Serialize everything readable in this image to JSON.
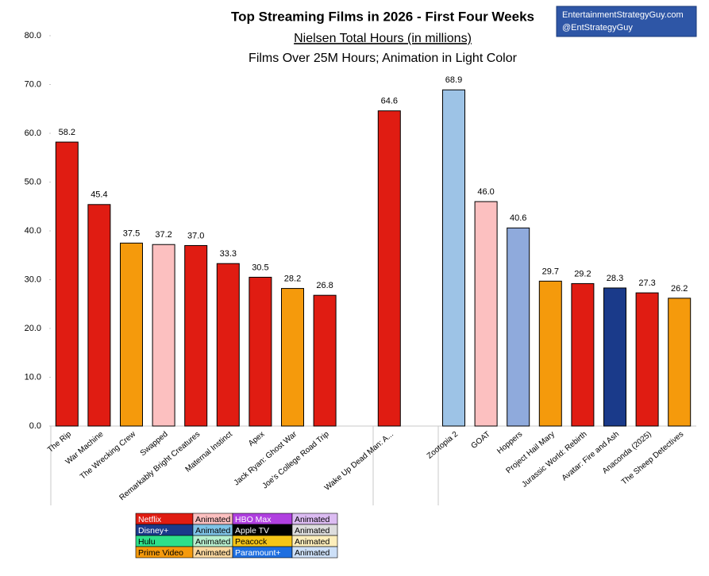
{
  "chart_data": {
    "type": "bar",
    "title": "Top Streaming Films in 2026 - First Four Weeks",
    "subtitle": "Nielsen Total Hours (in millions)",
    "note": "Films Over 25M Hours; Animation in Light Color",
    "credit": [
      "EntertainmentStrategyGuy.com",
      "@EntStrategyGuy"
    ],
    "categories": [
      "The Rip",
      "War Machine",
      "The Wrecking Crew",
      "Swapped",
      "Remarkably Bright Creatures",
      "Maternal Instinct",
      "Apex",
      "Jack Ryan: Ghost War",
      "Joe's College Road Trip",
      null,
      "Wake Up Dead Man: A...",
      null,
      "Zootopia 2",
      "GOAT",
      "Hoppers",
      "Project Hail Mary",
      "Jurassic World: Rebirth",
      "Avatar: Fire and Ash",
      "Anaconda (2025)",
      "The Sheep Detectives"
    ],
    "values": [
      58.2,
      45.4,
      37.5,
      37.2,
      37.0,
      33.3,
      30.5,
      28.2,
      26.8,
      null,
      64.6,
      null,
      68.9,
      46.0,
      40.6,
      29.7,
      29.2,
      28.3,
      27.3,
      26.2
    ],
    "value_labels": [
      "58.2",
      "45.4",
      "37.5",
      "37.2",
      "37.0",
      "33.3",
      "30.5",
      "28.2",
      "26.8",
      null,
      "64.6",
      null,
      "68.9",
      "46.0",
      "40.6",
      "29.7",
      "29.2",
      "28.3",
      "27.3",
      "26.2"
    ],
    "colors": [
      "#e01c12",
      "#e01c12",
      "#f59a0c",
      "#fcc0c0",
      "#e01c12",
      "#e01c12",
      "#e01c12",
      "#f59a0c",
      "#e01c12",
      null,
      "#e01c12",
      null,
      "#9dc3e6",
      "#fcc0c0",
      "#8faadc",
      "#f59a0c",
      "#e01c12",
      "#1a3a8a",
      "#e01c12",
      "#f59a0c"
    ],
    "ylim": [
      0,
      80
    ],
    "yticks": [
      {
        "value": 0,
        "label": "0.0"
      },
      {
        "value": 10,
        "label": "10.0"
      },
      {
        "value": 20,
        "label": "20.0"
      },
      {
        "value": 30,
        "label": "30.0"
      },
      {
        "value": 40,
        "label": "40.0"
      },
      {
        "value": 50,
        "label": "50.0"
      },
      {
        "value": 60,
        "label": "60.0"
      },
      {
        "value": 70,
        "label": "70.0"
      },
      {
        "value": 80,
        "label": "80.0"
      }
    ],
    "legend_table": {
      "rows": [
        [
          {
            "text": "Netflix",
            "bg": "#e01c12",
            "fg": "#ffffff"
          },
          {
            "text": "Animated",
            "bg": "#fcc0c0",
            "fg": "#000000"
          },
          {
            "text": "HBO Max",
            "bg": "#b040e0",
            "fg": "#ffffff"
          },
          {
            "text": "Animated",
            "bg": "#dcbcf2",
            "fg": "#000000"
          }
        ],
        [
          {
            "text": "Disney+",
            "bg": "#1a3a8a",
            "fg": "#ffffff"
          },
          {
            "text": "Animated",
            "bg": "#7fc4e8",
            "fg": "#000000"
          },
          {
            "text": "Apple TV",
            "bg": "#000000",
            "fg": "#ffffff"
          },
          {
            "text": "Animated",
            "bg": "#dddddd",
            "fg": "#000000"
          }
        ],
        [
          {
            "text": "Hulu",
            "bg": "#2ee08a",
            "fg": "#000000"
          },
          {
            "text": "Animated",
            "bg": "#b8f0d0",
            "fg": "#000000"
          },
          {
            "text": "Peacock",
            "bg": "#f5c518",
            "fg": "#000000"
          },
          {
            "text": "Animated",
            "bg": "#fdeebb",
            "fg": "#000000"
          }
        ],
        [
          {
            "text": "Prime Video",
            "bg": "#f59a0c",
            "fg": "#000000"
          },
          {
            "text": "Animated",
            "bg": "#fcd9a0",
            "fg": "#000000"
          },
          {
            "text": "Paramount+",
            "bg": "#1f6fe0",
            "fg": "#ffffff"
          },
          {
            "text": "Animated",
            "bg": "#cde0f8",
            "fg": "#000000"
          }
        ]
      ]
    }
  }
}
